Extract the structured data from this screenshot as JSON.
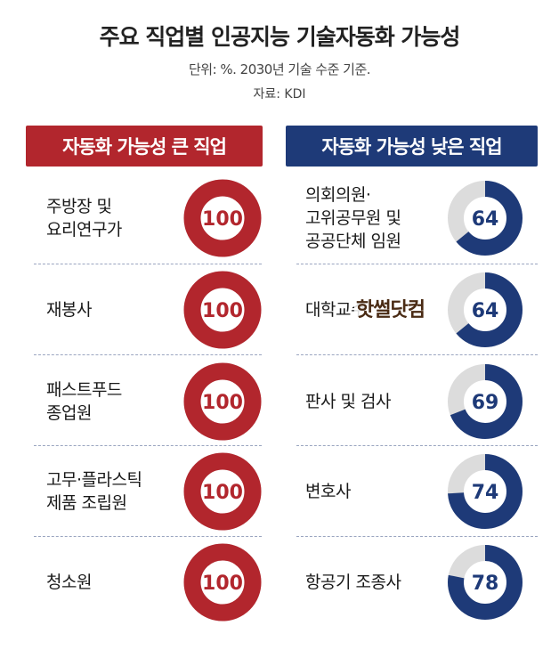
{
  "title": "주요 직업별 인공지능 기술자동화 가능성",
  "subtitle": "단위: %. 2030년 기술 수준 기준.",
  "source": "자료: KDI",
  "watermark": "핫썰닷컴",
  "colors": {
    "high": "#b2262d",
    "low": "#1e3a78",
    "track": "#dcdcdc"
  },
  "chart_data": [
    {
      "type": "pie",
      "title": "자동화 가능성 큰 직업",
      "unit": "%",
      "categories": [
        [
          "주방장 및",
          "요리연구가"
        ],
        [
          "재봉사"
        ],
        [
          "패스트푸드",
          "종업원"
        ],
        [
          "고무·플라스틱",
          "제품 조립원"
        ],
        [
          "청소원"
        ]
      ],
      "values": [
        100,
        100,
        100,
        100,
        100
      ]
    },
    {
      "type": "pie",
      "title": "자동화 가능성 낮은 직업",
      "unit": "%",
      "categories": [
        [
          "의회의원·",
          "고위공무원 및",
          "공공단체 임원"
        ],
        [
          "대학교수"
        ],
        [
          "판사 및 검사"
        ],
        [
          "변호사"
        ],
        [
          "항공기 조종사"
        ]
      ],
      "values": [
        64,
        64,
        69,
        74,
        78
      ]
    }
  ]
}
